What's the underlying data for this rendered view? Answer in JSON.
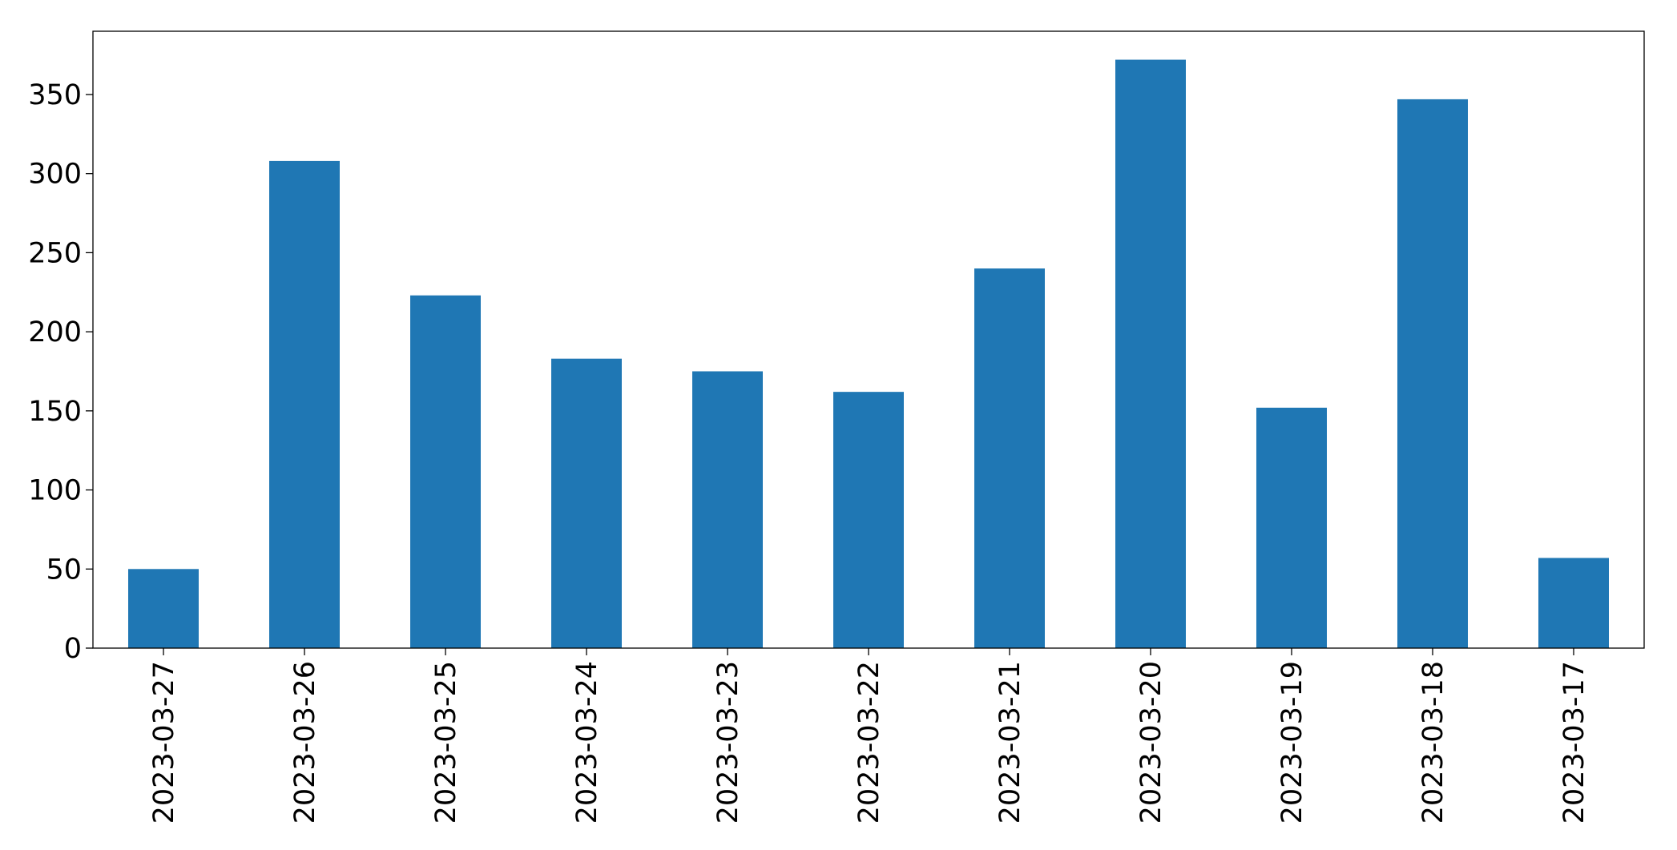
{
  "chart_data": {
    "type": "bar",
    "categories": [
      "2023-03-27",
      "2023-03-26",
      "2023-03-25",
      "2023-03-24",
      "2023-03-23",
      "2023-03-22",
      "2023-03-21",
      "2023-03-20",
      "2023-03-19",
      "2023-03-18",
      "2023-03-17"
    ],
    "values": [
      50,
      308,
      223,
      183,
      175,
      162,
      240,
      372,
      152,
      347,
      57
    ],
    "color": "#1f77b4",
    "ylim": [
      0,
      390
    ],
    "yticks": [
      0,
      50,
      100,
      150,
      200,
      250,
      300,
      350
    ],
    "grid": false
  }
}
